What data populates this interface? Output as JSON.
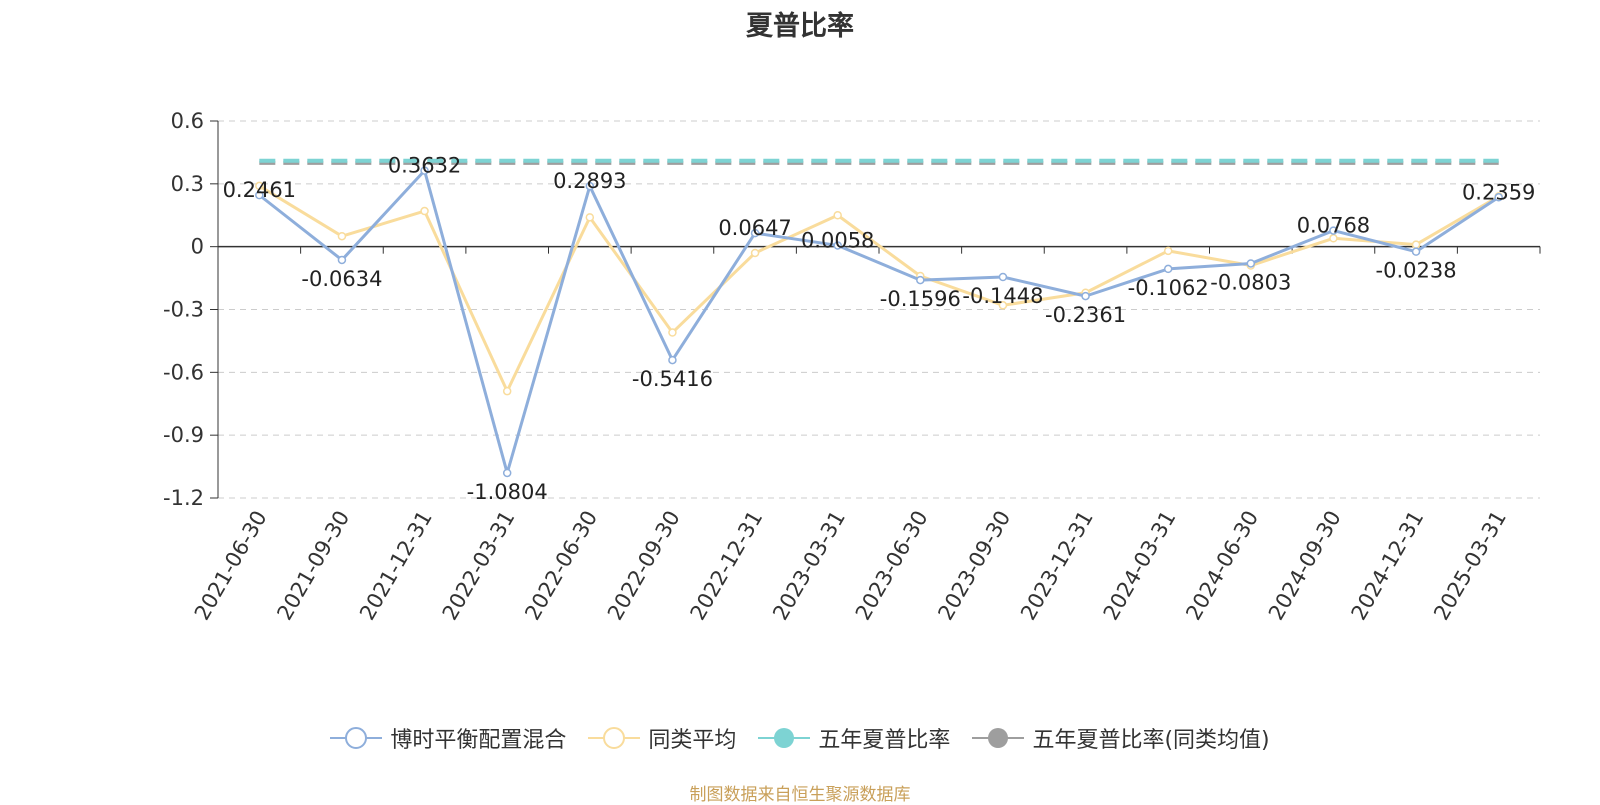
{
  "chart_data": {
    "type": "line",
    "title": "夏普比率",
    "categories": [
      "2021-06-30",
      "2021-09-30",
      "2021-12-31",
      "2022-03-31",
      "2022-06-30",
      "2022-09-30",
      "2022-12-31",
      "2023-03-31",
      "2023-06-30",
      "2023-09-30",
      "2023-12-31",
      "2024-03-31",
      "2024-06-30",
      "2024-09-30",
      "2024-12-31",
      "2025-03-31"
    ],
    "yticks": [
      "0.6",
      "0.3",
      "0",
      "-0.3",
      "-0.6",
      "-0.9",
      "-1.2"
    ],
    "ylim": [
      -1.2,
      0.6
    ],
    "grid": true,
    "legend_position": "bottom",
    "series": [
      {
        "name": "博时平衡配置混合",
        "color": "#8eaedb",
        "values": [
          0.2461,
          -0.0634,
          0.3632,
          -1.0804,
          0.2893,
          -0.5416,
          0.0647,
          0.0058,
          -0.1596,
          -0.1448,
          -0.2361,
          -0.1062,
          -0.0803,
          0.0768,
          -0.0238,
          0.2359
        ],
        "labels": [
          "0.2461",
          "-0.0634",
          "0.3632",
          "-1.0804",
          "0.2893",
          "-0.5416",
          "0.0647",
          "0.0058",
          "-0.1596",
          "-0.1448",
          "-0.2361",
          "-0.1062",
          "-0.0803",
          "0.0768",
          "-0.0238",
          "0.2359"
        ]
      },
      {
        "name": "同类平均",
        "color": "#f9dc9c",
        "values": [
          0.29,
          0.05,
          0.17,
          -0.69,
          0.14,
          -0.41,
          -0.03,
          0.15,
          -0.14,
          -0.28,
          -0.22,
          -0.02,
          -0.09,
          0.04,
          0.01,
          0.24
        ]
      },
      {
        "name": "五年夏普比率",
        "color": "#7dd3d3",
        "values": [
          0.41,
          0.41,
          0.41,
          0.41,
          0.41,
          0.41,
          0.41,
          0.41,
          0.41,
          0.41,
          0.41,
          0.41,
          0.41,
          0.41,
          0.41,
          0.41
        ],
        "dashed": true
      },
      {
        "name": "五年夏普比率(同类均值)",
        "color": "#9e9e9e",
        "values": [
          0.4,
          0.4,
          0.4,
          0.4,
          0.4,
          0.4,
          0.4,
          0.4,
          0.4,
          0.4,
          0.4,
          0.4,
          0.4,
          0.4,
          0.4,
          0.4
        ],
        "dashed": true
      }
    ]
  },
  "source_note": "制图数据来自恒生聚源数据库"
}
